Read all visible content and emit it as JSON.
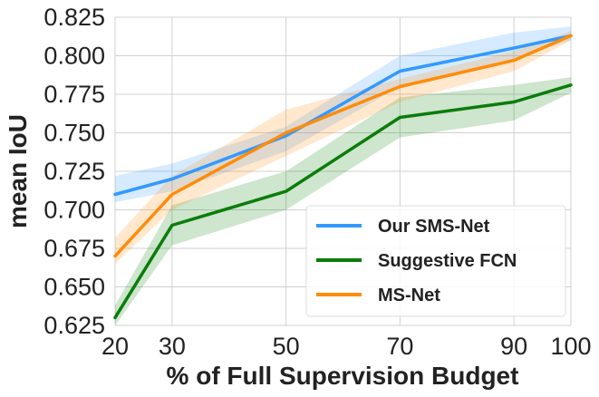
{
  "chart_data": {
    "type": "line",
    "xlabel": "% of Full Supervision Budget",
    "ylabel": "mean IoU",
    "x": [
      20,
      30,
      50,
      70,
      90,
      100
    ],
    "xticks": [
      "20",
      "30",
      "50",
      "70",
      "90",
      "100"
    ],
    "yticks": [
      "0.625",
      "0.650",
      "0.675",
      "0.700",
      "0.725",
      "0.750",
      "0.775",
      "0.800",
      "0.825"
    ],
    "xlim": [
      20,
      100
    ],
    "ylim": [
      0.625,
      0.825
    ],
    "grid": true,
    "legend_position": "lower-right",
    "series": [
      {
        "name": "Our SMS-Net",
        "color": "#3399ff",
        "values": [
          0.71,
          0.72,
          0.748,
          0.79,
          0.805,
          0.813
        ],
        "band_low": [
          0.705,
          0.712,
          0.738,
          0.78,
          0.798,
          0.81
        ],
        "band_high": [
          0.722,
          0.73,
          0.754,
          0.8,
          0.815,
          0.819
        ]
      },
      {
        "name": "Suggestive FCN",
        "color": "#0a7d0a",
        "values": [
          0.63,
          0.69,
          0.712,
          0.76,
          0.77,
          0.781
        ],
        "band_low": [
          0.625,
          0.677,
          0.7,
          0.747,
          0.758,
          0.776
        ],
        "band_high": [
          0.638,
          0.703,
          0.725,
          0.773,
          0.781,
          0.786
        ]
      },
      {
        "name": "MS-Net",
        "color": "#ff8c0a",
        "values": [
          0.67,
          0.71,
          0.75,
          0.78,
          0.797,
          0.813
        ],
        "band_low": [
          0.665,
          0.7,
          0.735,
          0.77,
          0.79,
          0.81
        ],
        "band_high": [
          0.682,
          0.722,
          0.765,
          0.785,
          0.803,
          0.816
        ]
      }
    ]
  }
}
